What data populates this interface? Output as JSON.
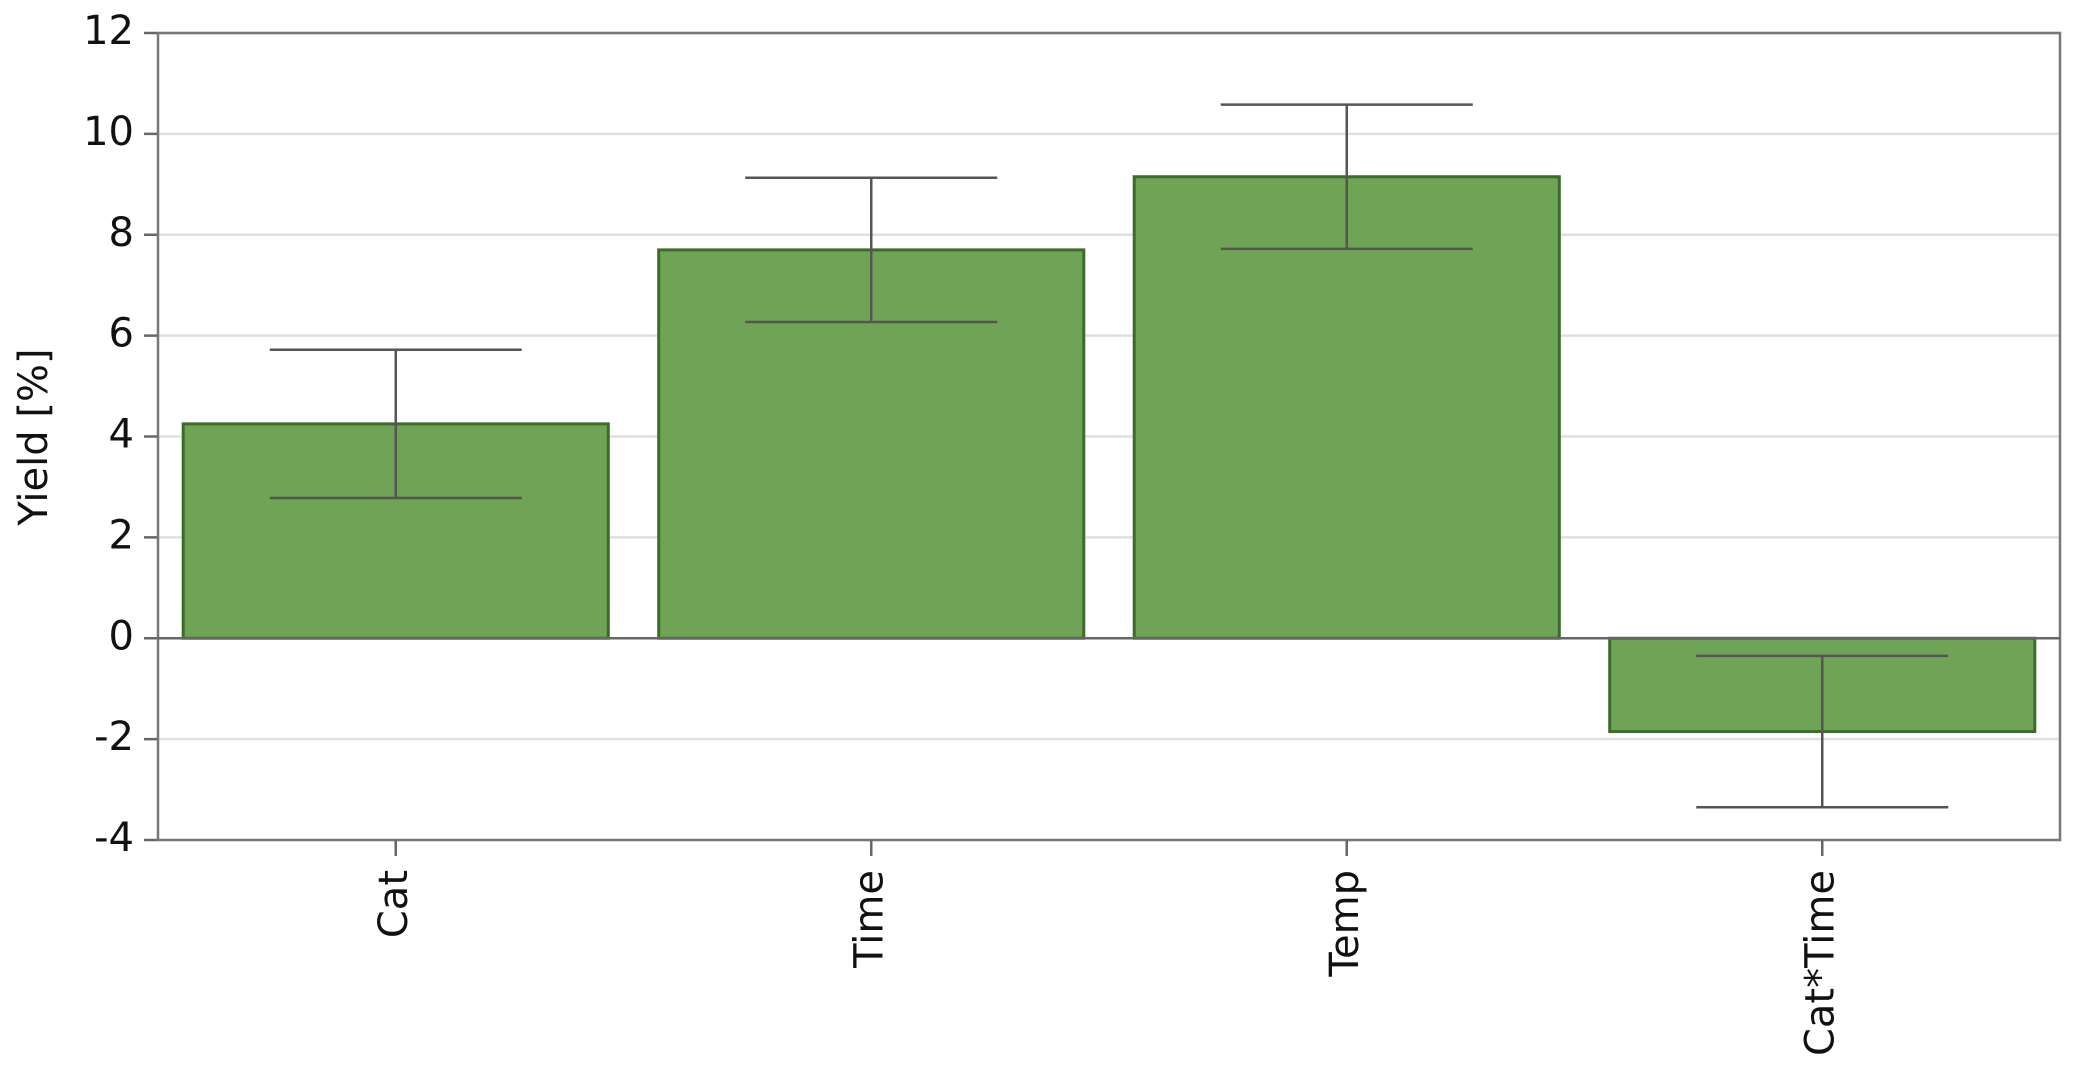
{
  "chart_data": {
    "type": "bar",
    "y_label": "Yield [%]",
    "categories": [
      "Cat",
      "Time",
      "Temp",
      "Cat*Time"
    ],
    "values": [
      4.25,
      7.7,
      9.15,
      -1.85
    ],
    "errors": [
      1.47,
      1.43,
      1.43,
      1.5
    ],
    "color": "#6fa355",
    "edge_color": "#3d6b2b",
    "ylim": [
      -4,
      12
    ],
    "yticks": [
      -4,
      -2,
      0,
      2,
      4,
      6,
      8,
      10,
      12
    ],
    "grid": true
  }
}
